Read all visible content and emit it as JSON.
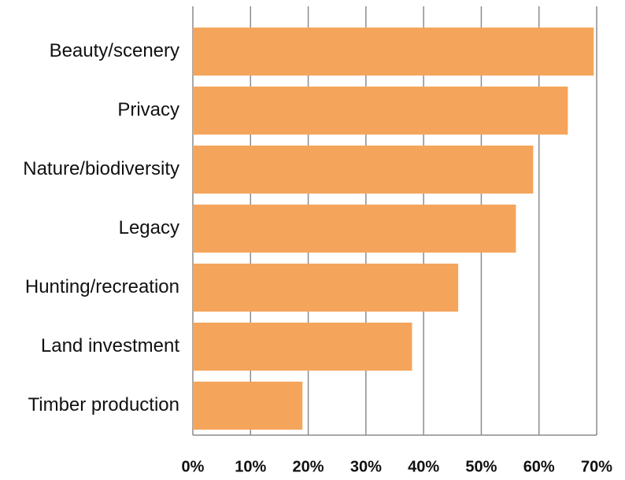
{
  "chart_data": {
    "type": "barh",
    "categories": [
      "Beauty/scenery",
      "Privacy",
      "Nature/biodiversity",
      "Legacy",
      "Hunting/recreation",
      "Land investment",
      "Timber production"
    ],
    "values": [
      69.5,
      65,
      59,
      56,
      46,
      38,
      19
    ],
    "color": "#f5a55b",
    "xlim": [
      0,
      70
    ],
    "xticks": [
      {
        "value": 0,
        "label": "0%"
      },
      {
        "value": 10,
        "label": "10%"
      },
      {
        "value": 20,
        "label": "20%"
      },
      {
        "value": 30,
        "label": "30%"
      },
      {
        "value": 40,
        "label": "40%"
      },
      {
        "value": 50,
        "label": "50%"
      },
      {
        "value": 60,
        "label": "60%"
      },
      {
        "value": 70,
        "label": "70%"
      }
    ],
    "grid": true
  }
}
